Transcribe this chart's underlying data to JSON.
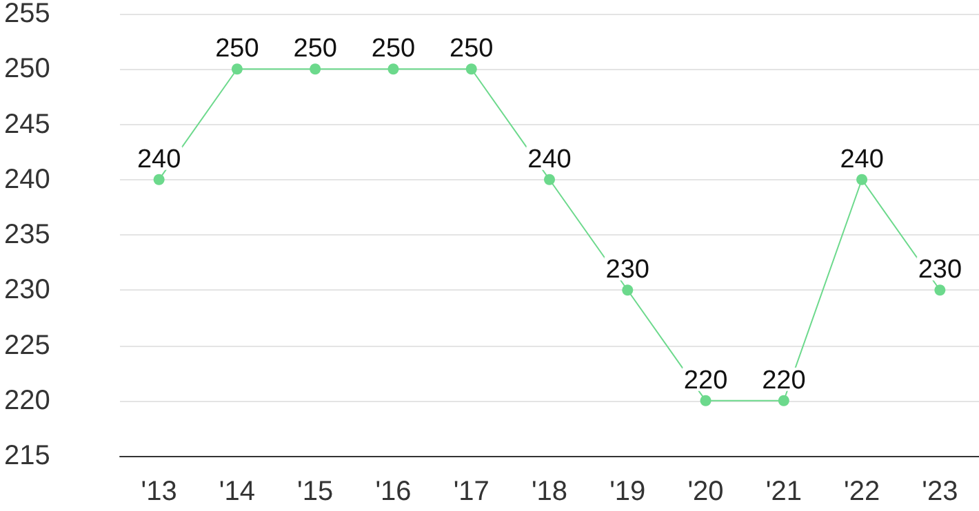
{
  "chart_data": {
    "type": "line",
    "categories": [
      "'13",
      "'14",
      "'15",
      "'16",
      "'17",
      "'18",
      "'19",
      "'20",
      "'21",
      "'22",
      "'23"
    ],
    "series": [
      {
        "color": "#6cd98c",
        "values": [
          240,
          250,
          250,
          250,
          250,
          240,
          230,
          220,
          220,
          240,
          230
        ]
      }
    ],
    "ylim": [
      215,
      255
    ],
    "yticks": [
      215,
      220,
      225,
      230,
      235,
      240,
      245,
      250,
      255
    ],
    "grid": "y",
    "data_labels": true,
    "marker": "circle",
    "line_style": "solid"
  }
}
